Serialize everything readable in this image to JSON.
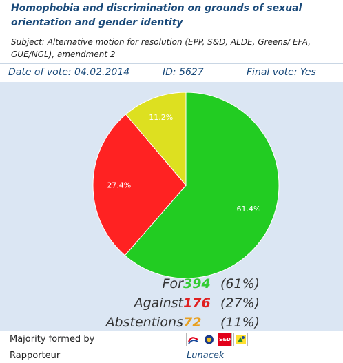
{
  "header": {
    "title": "Homophobia and discrimination on grounds of sexual orientation and gender identity",
    "subject": "Subject: Alternative motion for resolution (EPP, S&D, ALDE, Greens/ EFA, GUE/NGL), amendment 2"
  },
  "vote_info": {
    "date": "Date of vote: 04.02.2014",
    "id": "ID: 5627",
    "final_vote": "Final vote: Yes"
  },
  "chart_data": {
    "type": "pie",
    "slices": [
      {
        "label": "For",
        "value": 61.4,
        "display": "61.4%",
        "color": "#22cc22"
      },
      {
        "label": "Against",
        "value": 27.4,
        "display": "27.4%",
        "color": "#ff2222"
      },
      {
        "label": "Abstentions",
        "value": 11.2,
        "display": "11.2%",
        "color": "#dde020"
      }
    ]
  },
  "tally": {
    "for": {
      "label": "For",
      "count": "394",
      "percent": "(61%)",
      "color": "#33cc33"
    },
    "against": {
      "label": "Against",
      "count": "176",
      "percent": "(27%)",
      "color": "#e02020"
    },
    "abstentions": {
      "label": "Abstentions",
      "count": "72",
      "percent": "(11%)",
      "color": "#e8a020"
    }
  },
  "footer": {
    "majority_label": "Majority formed by",
    "rapporteur_label": "Rapporteur",
    "rapporteur_name": "Lunacek",
    "group_logos": [
      "epp-logo-icon",
      "alde-logo-icon",
      "sd-logo-icon",
      "greens-logo-icon"
    ],
    "sd_text": "S&D"
  }
}
